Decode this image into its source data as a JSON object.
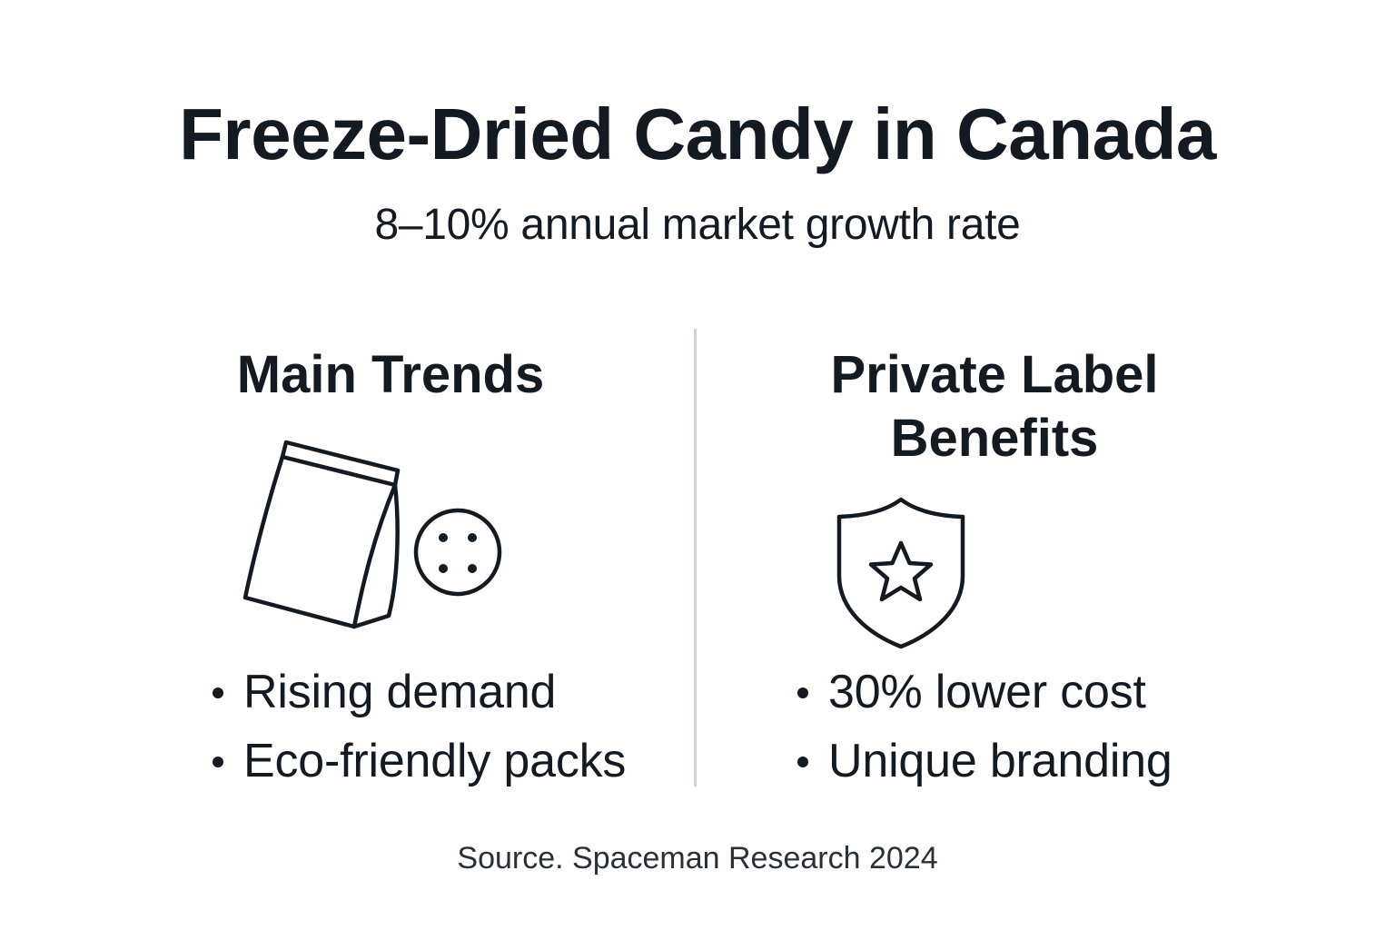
{
  "header": {
    "title": "Freeze-Dried Candy in Canada",
    "subtitle": "8–10% annual market growth rate"
  },
  "trends": {
    "heading": "Main Trends",
    "icons": [
      "candy-bag-icon",
      "candy-icon"
    ],
    "items": [
      {
        "label": "Rising demand"
      },
      {
        "label": "Eco-friendly packs"
      }
    ]
  },
  "benefits": {
    "heading_line1": "Private Label",
    "heading_line2": "Benefits",
    "icons": [
      "shield-star-icon"
    ],
    "items": [
      {
        "label": "30% lower cost"
      },
      {
        "label": "Unique branding"
      }
    ]
  },
  "footer": {
    "source": "Source. Spaceman Research 2024"
  },
  "colors": {
    "text": "#141a22",
    "divider": "#d0d2d6",
    "background": "#ffffff"
  }
}
